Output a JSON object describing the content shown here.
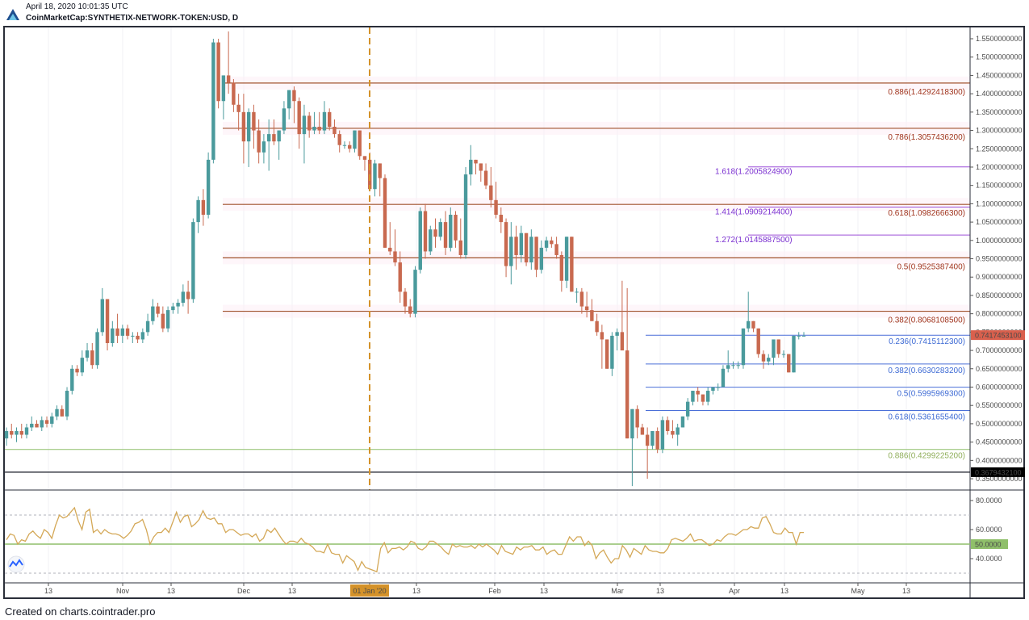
{
  "header": {
    "timestamp": "April 18, 2020 10:01:35 UTC",
    "symbol": "CoinMarketCap:SYNTHETIX-NETWORK-TOKEN:USD, D",
    "logo_icon": "chart-logo-icon"
  },
  "footer": {
    "credit": "Created on charts.cointrader.pro"
  },
  "colors": {
    "up_candle": "#4a9a9c",
    "down_candle": "#c8694f",
    "fib_retrace_upper": "#a0522d",
    "fib_extension": "#9c4fd8",
    "fib_retrace_lower": "#4a6fd8",
    "fib_0886_lower": "#8fbf6a",
    "current_price_bg": "#d9604d",
    "support_line": "#131722",
    "rsi_line": "#d4a857",
    "rsi_mid_line": "#8fbf6a",
    "date_marker": "#d4922a"
  },
  "chart_data": [
    {
      "type": "candlestick",
      "title": "CoinMarketCap:SYNTHETIX-NETWORK-TOKEN:USD, D",
      "xlabel": "",
      "ylabel": "",
      "ylim": [
        0.33,
        1.57
      ],
      "y_ticks": [
        "1.5500000000",
        "1.5000000000",
        "1.4500000000",
        "1.4000000000",
        "1.3500000000",
        "1.3000000000",
        "1.2500000000",
        "1.2000000000",
        "1.1500000000",
        "1.1000000000",
        "1.0500000000",
        "1.0000000000",
        "0.9500000000",
        "0.9000000000",
        "0.8500000000",
        "0.8000000000",
        "0.7500000000",
        "0.7000000000",
        "0.6500000000",
        "0.6000000000",
        "0.5500000000",
        "0.5000000000",
        "0.4500000000",
        "0.4000000000",
        "0.3500000000"
      ],
      "x_ticks": [
        "13",
        "Nov",
        "13",
        "Dec",
        "13",
        "01 Jan '20",
        "13",
        "Feb",
        "13",
        "Mar",
        "13",
        "Apr",
        "13",
        "May",
        "13"
      ],
      "current_price": "0.7417453100",
      "support_price": "0.3679432100",
      "vertical_marker": "01 Jan '20",
      "fib_levels_upper": [
        {
          "label": "0.886(1.4292418300)",
          "value": 1.42924183
        },
        {
          "label": "0.786(1.3057436200)",
          "value": 1.30574362
        },
        {
          "label": "0.618(1.0982666300)",
          "value": 1.09826663
        },
        {
          "label": "0.5(0.9525387400)",
          "value": 0.95253874
        },
        {
          "label": "0.382(0.8068108500)",
          "value": 0.80681085
        }
      ],
      "fib_extensions": [
        {
          "label": "1.618(1.2005824900)",
          "value": 1.20058249
        },
        {
          "label": "1.414(1.0909214400)",
          "value": 1.09092144
        },
        {
          "label": "1.272(1.0145887500)",
          "value": 1.01458875
        }
      ],
      "fib_levels_lower": [
        {
          "label": "0.236(0.7415112300)",
          "value": 0.74151123
        },
        {
          "label": "0.382(0.6630283200)",
          "value": 0.66302832
        },
        {
          "label": "0.5(0.5995969300)",
          "value": 0.59959693
        },
        {
          "label": "0.618(0.5361655400)",
          "value": 0.53616554
        },
        {
          "label": "0.886(0.4299225200)",
          "value": 0.42992252
        }
      ],
      "candles_ohlc": [
        [
          0.46,
          0.49,
          0.44,
          0.48
        ],
        [
          0.48,
          0.5,
          0.46,
          0.47
        ],
        [
          0.47,
          0.49,
          0.45,
          0.48
        ],
        [
          0.48,
          0.5,
          0.46,
          0.47
        ],
        [
          0.47,
          0.5,
          0.46,
          0.49
        ],
        [
          0.49,
          0.52,
          0.48,
          0.5
        ],
        [
          0.5,
          0.51,
          0.49,
          0.49
        ],
        [
          0.49,
          0.52,
          0.48,
          0.51
        ],
        [
          0.51,
          0.52,
          0.49,
          0.5
        ],
        [
          0.5,
          0.53,
          0.49,
          0.52
        ],
        [
          0.52,
          0.55,
          0.51,
          0.54
        ],
        [
          0.54,
          0.55,
          0.52,
          0.52
        ],
        [
          0.52,
          0.6,
          0.51,
          0.59
        ],
        [
          0.59,
          0.66,
          0.58,
          0.65
        ],
        [
          0.65,
          0.66,
          0.63,
          0.64
        ],
        [
          0.64,
          0.7,
          0.63,
          0.68
        ],
        [
          0.68,
          0.72,
          0.67,
          0.7
        ],
        [
          0.7,
          0.72,
          0.65,
          0.66
        ],
        [
          0.66,
          0.76,
          0.65,
          0.75
        ],
        [
          0.75,
          0.87,
          0.74,
          0.84
        ],
        [
          0.84,
          0.84,
          0.7,
          0.72
        ],
        [
          0.72,
          0.78,
          0.71,
          0.76
        ],
        [
          0.76,
          0.8,
          0.72,
          0.74
        ],
        [
          0.74,
          0.77,
          0.72,
          0.76
        ],
        [
          0.76,
          0.77,
          0.73,
          0.74
        ],
        [
          0.74,
          0.75,
          0.72,
          0.74
        ],
        [
          0.74,
          0.75,
          0.72,
          0.73
        ],
        [
          0.73,
          0.76,
          0.72,
          0.75
        ],
        [
          0.75,
          0.8,
          0.74,
          0.78
        ],
        [
          0.78,
          0.84,
          0.77,
          0.82
        ],
        [
          0.82,
          0.83,
          0.79,
          0.8
        ],
        [
          0.8,
          0.82,
          0.75,
          0.76
        ],
        [
          0.76,
          0.82,
          0.75,
          0.81
        ],
        [
          0.81,
          0.83,
          0.8,
          0.82
        ],
        [
          0.82,
          0.84,
          0.8,
          0.83
        ],
        [
          0.83,
          0.88,
          0.82,
          0.86
        ],
        [
          0.86,
          0.89,
          0.8,
          0.84
        ],
        [
          0.84,
          1.06,
          0.83,
          1.05
        ],
        [
          1.05,
          1.12,
          1.02,
          1.11
        ],
        [
          1.11,
          1.14,
          1.04,
          1.07
        ],
        [
          1.07,
          1.24,
          1.06,
          1.22
        ],
        [
          1.22,
          1.55,
          1.21,
          1.54
        ],
        [
          1.54,
          1.55,
          1.36,
          1.38
        ],
        [
          1.38,
          1.45,
          1.33,
          1.45
        ],
        [
          1.45,
          1.57,
          1.4,
          1.43
        ],
        [
          1.43,
          1.44,
          1.35,
          1.37
        ],
        [
          1.37,
          1.4,
          1.3,
          1.35
        ],
        [
          1.35,
          1.4,
          1.21,
          1.27
        ],
        [
          1.27,
          1.36,
          1.2,
          1.35
        ],
        [
          1.35,
          1.37,
          1.25,
          1.3
        ],
        [
          1.3,
          1.33,
          1.21,
          1.24
        ],
        [
          1.24,
          1.29,
          1.21,
          1.27
        ],
        [
          1.27,
          1.33,
          1.19,
          1.29
        ],
        [
          1.29,
          1.33,
          1.26,
          1.27
        ],
        [
          1.27,
          1.3,
          1.22,
          1.3
        ],
        [
          1.3,
          1.38,
          1.29,
          1.36
        ],
        [
          1.36,
          1.41,
          1.33,
          1.41
        ],
        [
          1.41,
          1.42,
          1.32,
          1.38
        ],
        [
          1.38,
          1.39,
          1.25,
          1.29
        ],
        [
          1.29,
          1.37,
          1.21,
          1.34
        ],
        [
          1.34,
          1.35,
          1.28,
          1.3
        ],
        [
          1.3,
          1.35,
          1.29,
          1.31
        ],
        [
          1.31,
          1.35,
          1.29,
          1.3
        ],
        [
          1.3,
          1.38,
          1.29,
          1.35
        ],
        [
          1.35,
          1.36,
          1.3,
          1.31
        ],
        [
          1.31,
          1.33,
          1.28,
          1.29
        ],
        [
          1.29,
          1.3,
          1.24,
          1.26
        ],
        [
          1.26,
          1.27,
          1.25,
          1.26
        ],
        [
          1.26,
          1.27,
          1.24,
          1.25
        ],
        [
          1.25,
          1.3,
          1.24,
          1.3
        ],
        [
          1.3,
          1.3,
          1.22,
          1.23
        ],
        [
          1.23,
          1.23,
          1.19,
          1.22
        ],
        [
          1.22,
          1.24,
          1.14,
          1.14
        ],
        [
          1.14,
          1.22,
          1.12,
          1.21
        ],
        [
          1.21,
          1.21,
          1.12,
          1.17
        ],
        [
          1.17,
          1.18,
          0.98,
          0.98
        ],
        [
          0.98,
          1.05,
          0.96,
          0.97
        ],
        [
          0.97,
          1.03,
          0.93,
          0.94
        ],
        [
          0.94,
          0.97,
          0.83,
          0.86
        ],
        [
          0.86,
          0.87,
          0.8,
          0.82
        ],
        [
          0.82,
          0.84,
          0.79,
          0.8
        ],
        [
          0.8,
          0.93,
          0.79,
          0.92
        ],
        [
          0.92,
          1.09,
          0.91,
          1.08
        ],
        [
          1.08,
          1.1,
          0.95,
          0.97
        ],
        [
          0.97,
          1.04,
          0.96,
          1.03
        ],
        [
          1.03,
          1.06,
          0.98,
          1.01
        ],
        [
          1.01,
          1.06,
          1.0,
          1.05
        ],
        [
          1.05,
          1.08,
          0.96,
          0.98
        ],
        [
          0.98,
          1.09,
          0.97,
          1.07
        ],
        [
          1.07,
          1.08,
          0.98,
          1.0
        ],
        [
          1.0,
          1.06,
          0.95,
          0.96
        ],
        [
          0.96,
          1.2,
          0.95,
          1.18
        ],
        [
          1.18,
          1.26,
          1.15,
          1.22
        ],
        [
          1.22,
          1.22,
          1.18,
          1.21
        ],
        [
          1.21,
          1.21,
          1.16,
          1.19
        ],
        [
          1.19,
          1.21,
          1.14,
          1.15
        ],
        [
          1.15,
          1.2,
          1.09,
          1.11
        ],
        [
          1.11,
          1.16,
          1.06,
          1.07
        ],
        [
          1.07,
          1.09,
          1.02,
          1.05
        ],
        [
          1.05,
          1.06,
          0.9,
          0.93
        ],
        [
          0.93,
          1.05,
          0.88,
          1.01
        ],
        [
          1.01,
          1.04,
          0.92,
          0.96
        ],
        [
          0.96,
          1.04,
          0.94,
          1.02
        ],
        [
          1.02,
          1.02,
          0.93,
          0.94
        ],
        [
          0.94,
          1.03,
          0.92,
          1.01
        ],
        [
          1.01,
          1.01,
          0.9,
          0.92
        ],
        [
          0.92,
          1.0,
          0.91,
          0.98
        ],
        [
          0.98,
          1.01,
          0.97,
          1.0
        ],
        [
          1.0,
          1.01,
          0.98,
          0.99
        ],
        [
          0.99,
          1.01,
          0.95,
          0.96
        ],
        [
          0.96,
          0.97,
          0.86,
          0.89
        ],
        [
          0.89,
          1.01,
          0.87,
          1.01
        ],
        [
          1.01,
          1.01,
          0.86,
          0.86
        ],
        [
          0.86,
          0.87,
          0.83,
          0.86
        ],
        [
          0.86,
          0.87,
          0.8,
          0.82
        ],
        [
          0.82,
          0.86,
          0.79,
          0.81
        ],
        [
          0.81,
          0.84,
          0.78,
          0.78
        ],
        [
          0.78,
          0.8,
          0.74,
          0.75
        ],
        [
          0.75,
          0.77,
          0.65,
          0.73
        ],
        [
          0.73,
          0.73,
          0.65,
          0.65
        ],
        [
          0.65,
          0.75,
          0.63,
          0.74
        ],
        [
          0.74,
          0.76,
          0.7,
          0.75
        ],
        [
          0.75,
          0.89,
          0.73,
          0.7
        ],
        [
          0.7,
          0.87,
          0.46,
          0.46
        ],
        [
          0.46,
          0.54,
          0.33,
          0.54
        ],
        [
          0.54,
          0.55,
          0.46,
          0.49
        ],
        [
          0.49,
          0.5,
          0.47,
          0.47
        ],
        [
          0.47,
          0.49,
          0.35,
          0.44
        ],
        [
          0.44,
          0.48,
          0.43,
          0.48
        ],
        [
          0.48,
          0.49,
          0.42,
          0.43
        ],
        [
          0.43,
          0.52,
          0.42,
          0.51
        ],
        [
          0.51,
          0.52,
          0.47,
          0.48
        ],
        [
          0.48,
          0.51,
          0.46,
          0.47
        ],
        [
          0.47,
          0.5,
          0.44,
          0.49
        ],
        [
          0.49,
          0.52,
          0.49,
          0.52
        ],
        [
          0.52,
          0.57,
          0.51,
          0.56
        ],
        [
          0.56,
          0.59,
          0.55,
          0.59
        ],
        [
          0.59,
          0.6,
          0.56,
          0.58
        ],
        [
          0.58,
          0.58,
          0.55,
          0.56
        ],
        [
          0.56,
          0.6,
          0.55,
          0.59
        ],
        [
          0.59,
          0.6,
          0.58,
          0.6
        ],
        [
          0.6,
          0.61,
          0.59,
          0.6
        ],
        [
          0.6,
          0.66,
          0.6,
          0.65
        ],
        [
          0.65,
          0.7,
          0.64,
          0.66
        ],
        [
          0.66,
          0.67,
          0.65,
          0.66
        ],
        [
          0.66,
          0.67,
          0.65,
          0.66
        ],
        [
          0.66,
          0.76,
          0.65,
          0.76
        ],
        [
          0.76,
          0.86,
          0.75,
          0.78
        ],
        [
          0.78,
          0.78,
          0.75,
          0.76
        ],
        [
          0.76,
          0.76,
          0.68,
          0.69
        ],
        [
          0.69,
          0.7,
          0.65,
          0.67
        ],
        [
          0.67,
          0.69,
          0.66,
          0.68
        ],
        [
          0.68,
          0.72,
          0.66,
          0.73
        ],
        [
          0.73,
          0.73,
          0.68,
          0.69
        ],
        [
          0.69,
          0.7,
          0.68,
          0.69
        ],
        [
          0.69,
          0.69,
          0.64,
          0.64
        ],
        [
          0.64,
          0.74,
          0.64,
          0.74
        ],
        [
          0.74,
          0.75,
          0.73,
          0.74
        ],
        [
          0.74,
          0.75,
          0.74,
          0.74
        ]
      ]
    },
    {
      "type": "line",
      "title": "RSI",
      "ylim": [
        30,
        88
      ],
      "y_ticks": [
        "80.0000",
        "60.0000",
        "40.0000"
      ],
      "mid_label": "50.0000",
      "upper_band": 70,
      "lower_band": 30,
      "values": [
        53,
        57,
        56,
        50,
        53,
        52,
        57,
        59,
        56,
        54,
        60,
        58,
        54,
        63,
        70,
        68,
        69,
        72,
        75,
        66,
        60,
        72,
        74,
        58,
        60,
        57,
        60,
        58,
        57,
        57,
        56,
        54,
        56,
        59,
        64,
        65,
        67,
        60,
        50,
        55,
        58,
        58,
        61,
        58,
        65,
        72,
        65,
        69,
        70,
        62,
        64,
        67,
        73,
        68,
        67,
        68,
        64,
        64,
        58,
        60,
        60,
        58,
        56,
        57,
        57,
        55,
        57,
        52,
        54,
        60,
        58,
        61,
        57,
        53,
        50,
        52,
        52,
        51,
        54,
        51,
        50,
        48,
        45,
        45,
        44,
        50,
        44,
        43,
        43,
        37,
        42,
        40,
        38,
        32,
        38,
        34,
        33,
        32,
        31,
        47,
        51,
        44,
        47,
        47,
        48,
        46,
        48,
        52,
        51,
        47,
        46,
        48,
        52,
        52,
        50,
        48,
        45,
        43,
        50,
        48,
        49,
        48,
        48,
        49,
        47,
        50,
        48,
        50,
        48,
        46,
        43,
        49,
        45,
        44,
        43,
        48,
        46,
        48,
        48,
        49,
        46,
        46,
        48,
        43,
        45,
        46,
        43,
        43,
        49,
        55,
        52,
        55,
        55,
        49,
        52,
        49,
        40,
        44,
        46,
        41,
        37,
        40,
        40,
        49,
        46,
        41,
        47,
        45,
        43,
        49,
        46,
        45,
        45,
        44,
        44,
        47,
        53,
        54,
        53,
        52,
        54,
        57,
        52,
        53,
        53,
        51,
        49,
        50,
        53,
        52,
        55,
        57,
        57,
        56,
        58,
        60,
        60,
        62,
        61,
        61,
        68,
        69,
        64,
        58,
        57,
        57,
        61,
        58,
        58,
        50,
        58,
        58
      ]
    }
  ]
}
